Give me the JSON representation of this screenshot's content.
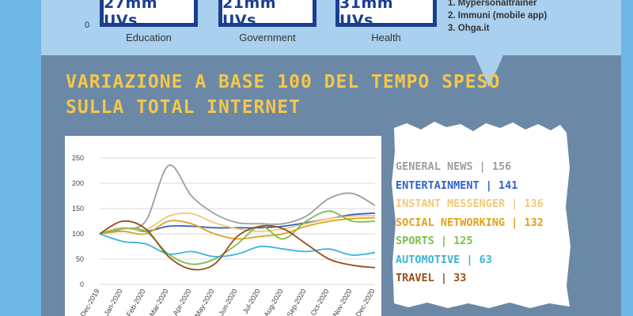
{
  "top": {
    "zero_label": "0",
    "boxes": [
      {
        "value": "27mm UVs",
        "category": "Education"
      },
      {
        "value": "21mm UVs",
        "category": "Government"
      },
      {
        "value": "31mm UVs",
        "category": "Health"
      }
    ],
    "top_list": [
      "1. Mypersonaltrainer",
      "2. Immuni (mobile app)",
      "3. Ohga.it"
    ]
  },
  "title_line1": "VARIAZIONE A BASE 100 DEL TEMPO SPESO",
  "title_line2": "SULLA TOTAL INTERNET",
  "legend": [
    {
      "text": "GENERAL NEWS | 156",
      "color": "#9e9e9e"
    },
    {
      "text": "ENTERTAINMENT | 141",
      "color": "#2f62c9"
    },
    {
      "text": "INSTANT MESSENGER | 136",
      "color": "#f3c878"
    },
    {
      "text": "SOCIAL NETWORKING | 132",
      "color": "#e0a21a"
    },
    {
      "text": "SPORTS | 125",
      "color": "#7cbf4a"
    },
    {
      "text": "AUTOMOTIVE | 63",
      "color": "#3cb4d6"
    },
    {
      "text": "TRAVEL | 33",
      "color": "#9a4e1a"
    }
  ],
  "chart_data": {
    "type": "line",
    "x": [
      "Dec-2019",
      "Jan-2020",
      "Feb-2020",
      "Mar-2020",
      "Apr-2020",
      "May-2020",
      "Jun-2020",
      "Jul-2020",
      "Aug-2020",
      "Sep-2020",
      "Oct-2020",
      "Nov-2020",
      "Dec-2020"
    ],
    "ylim": [
      0,
      250
    ],
    "yticks": [
      0,
      50,
      100,
      150,
      200,
      250
    ],
    "grid": true,
    "series": [
      {
        "name": "GENERAL NEWS",
        "color": "#9e9e9e",
        "values": [
          100,
          110,
          125,
          235,
          175,
          140,
          122,
          120,
          120,
          135,
          170,
          180,
          156
        ]
      },
      {
        "name": "ENTERTAINMENT",
        "color": "#2f62c9",
        "values": [
          100,
          112,
          105,
          115,
          115,
          112,
          112,
          112,
          115,
          122,
          130,
          138,
          141
        ]
      },
      {
        "name": "INSTANT MESSENGER",
        "color": "#f3c878",
        "values": [
          100,
          112,
          108,
          135,
          140,
          122,
          110,
          105,
          110,
          120,
          130,
          135,
          136
        ]
      },
      {
        "name": "SOCIAL NETWORKING",
        "color": "#e0a21a",
        "values": [
          100,
          105,
          100,
          125,
          120,
          100,
          90,
          95,
          100,
          115,
          125,
          130,
          132
        ]
      },
      {
        "name": "SPORTS",
        "color": "#7cbf4a",
        "values": [
          100,
          110,
          105,
          60,
          40,
          50,
          80,
          115,
          90,
          125,
          145,
          125,
          125
        ]
      },
      {
        "name": "AUTOMOTIVE",
        "color": "#3cb4d6",
        "values": [
          100,
          85,
          80,
          60,
          65,
          55,
          60,
          75,
          70,
          65,
          70,
          58,
          63
        ]
      },
      {
        "name": "TRAVEL",
        "color": "#9a4e1a",
        "values": [
          100,
          125,
          110,
          55,
          30,
          40,
          95,
          115,
          110,
          80,
          50,
          38,
          33
        ]
      }
    ]
  }
}
